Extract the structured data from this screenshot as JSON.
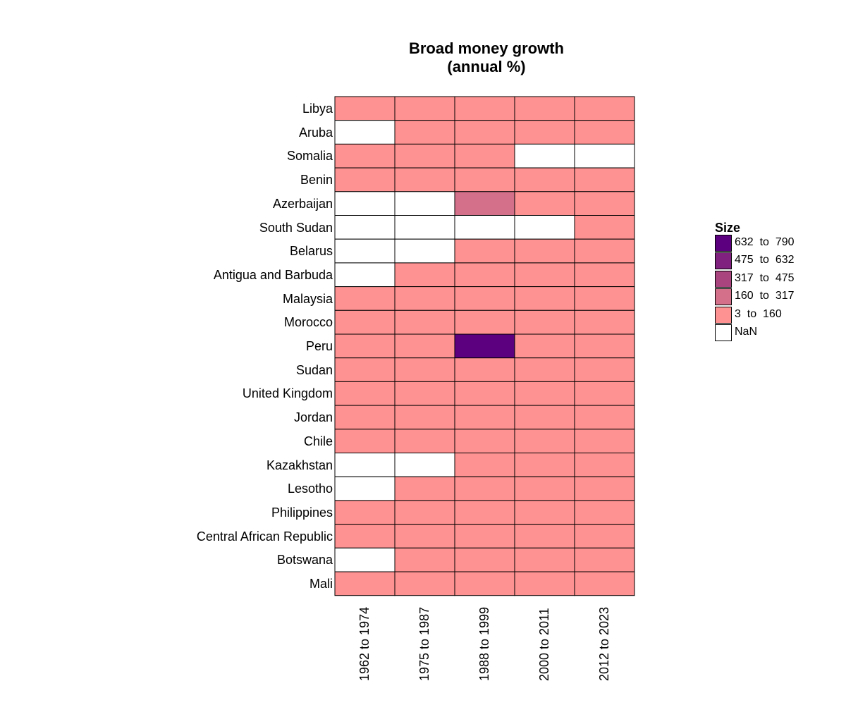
{
  "chart_data": {
    "type": "heatmap",
    "title": [
      "Broad money growth",
      "(annual %)"
    ],
    "columns": [
      "1962 to 1974",
      "1975 to 1987",
      "1988 to 1999",
      "2000 to 2011",
      "2012 to 2023"
    ],
    "rows": [
      "Libya",
      "Aruba",
      "Somalia",
      "Benin",
      "Azerbaijan",
      "South Sudan",
      "Belarus",
      "Antigua and Barbuda",
      "Malaysia",
      "Morocco",
      "Peru",
      "Sudan",
      "United Kingdom",
      "Jordan",
      "Chile",
      "Kazakhstan",
      "Lesotho",
      "Philippines",
      "Central African Republic",
      "Botswana",
      "Mali"
    ],
    "bins": [
      [
        0,
        0,
        0,
        0,
        0
      ],
      [
        -1,
        0,
        0,
        0,
        0
      ],
      [
        0,
        0,
        0,
        -1,
        -1
      ],
      [
        0,
        0,
        0,
        0,
        0
      ],
      [
        -1,
        -1,
        1,
        0,
        0
      ],
      [
        -1,
        -1,
        -1,
        -1,
        0
      ],
      [
        -1,
        -1,
        0,
        0,
        0
      ],
      [
        -1,
        0,
        0,
        0,
        0
      ],
      [
        0,
        0,
        0,
        0,
        0
      ],
      [
        0,
        0,
        0,
        0,
        0
      ],
      [
        0,
        0,
        4,
        0,
        0
      ],
      [
        0,
        0,
        0,
        0,
        0
      ],
      [
        0,
        0,
        0,
        0,
        0
      ],
      [
        0,
        0,
        0,
        0,
        0
      ],
      [
        0,
        0,
        0,
        0,
        0
      ],
      [
        -1,
        -1,
        0,
        0,
        0
      ],
      [
        -1,
        0,
        0,
        0,
        0
      ],
      [
        0,
        0,
        0,
        0,
        0
      ],
      [
        0,
        0,
        0,
        0,
        0
      ],
      [
        -1,
        0,
        0,
        0,
        0
      ],
      [
        0,
        0,
        0,
        0,
        0
      ]
    ],
    "legend": {
      "title": "Size",
      "placement": "right",
      "items": [
        {
          "label": "632  to  790",
          "color": "#5c0080"
        },
        {
          "label": "475  to  632",
          "color": "#80207f"
        },
        {
          "label": "317  to  475",
          "color": "#a9447f"
        },
        {
          "label": "160  to  317",
          "color": "#d5708a"
        },
        {
          "label": "3  to  160",
          "color": "#fe9191"
        },
        {
          "label": "NaN",
          "color": "#ffffff"
        }
      ]
    },
    "bin_colors": [
      "#fe9191",
      "#d5708a",
      "#a9447f",
      "#80207f",
      "#5c0080"
    ],
    "nan_color": "#ffffff"
  }
}
